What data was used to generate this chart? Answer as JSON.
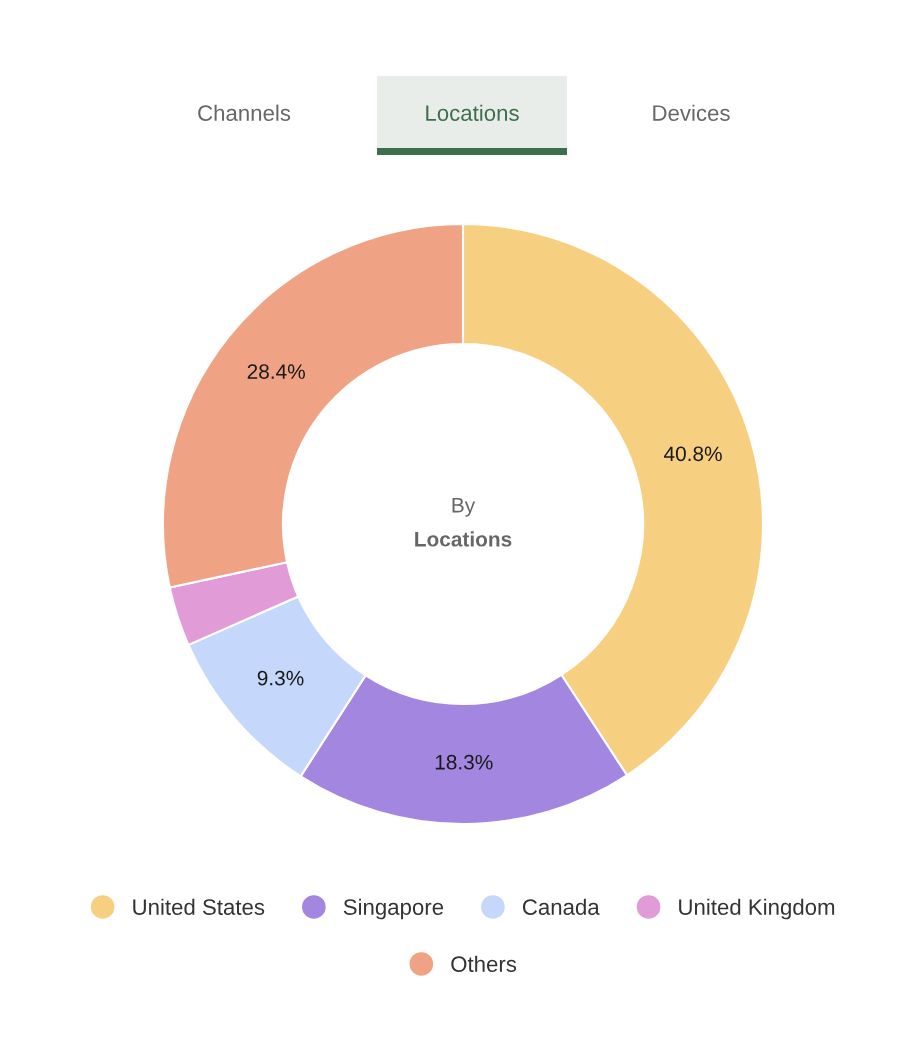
{
  "chart_data": {
    "type": "donut",
    "categories": [
      "United States",
      "Singapore",
      "Canada",
      "United Kingdom",
      "Others"
    ],
    "values": [
      40.8,
      18.3,
      9.3,
      3.2,
      28.4
    ],
    "colors": [
      "#f6d080",
      "#a386e0",
      "#c5d7fb",
      "#e19bd6",
      "#f0a284"
    ],
    "value_labels": [
      "40.8%",
      "18.3%",
      "9.3%",
      null,
      "28.4%"
    ],
    "annotations": [
      "Channels",
      "Locations",
      "Devices",
      "By",
      "Locations"
    ],
    "legend": "bottom"
  }
}
